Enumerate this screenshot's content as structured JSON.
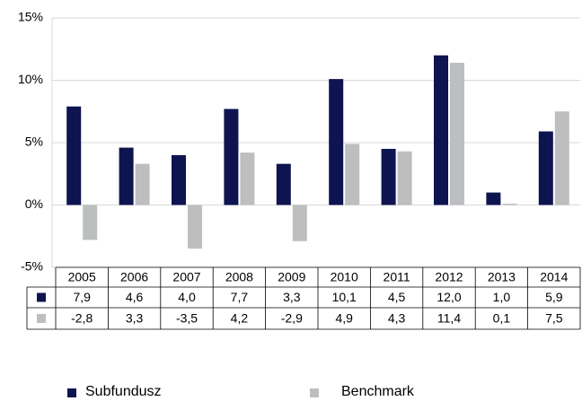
{
  "chart_data": {
    "type": "bar",
    "categories": [
      "2005",
      "2006",
      "2007",
      "2008",
      "2009",
      "2010",
      "2011",
      "2012",
      "2013",
      "2014"
    ],
    "series": [
      {
        "name": "Subfundusz",
        "color": "#0d1450",
        "values": [
          7.9,
          4.6,
          4.0,
          7.7,
          3.3,
          10.1,
          4.5,
          12.0,
          1.0,
          5.9
        ],
        "value_labels": [
          "7,9",
          "4,6",
          "4,0",
          "7,7",
          "3,3",
          "10,1",
          "4,5",
          "12,0",
          "1,0",
          "5,9"
        ]
      },
      {
        "name": "Benchmark",
        "color": "#bdbebf",
        "values": [
          -2.8,
          3.3,
          -3.5,
          4.2,
          -2.9,
          4.9,
          4.3,
          11.4,
          0.1,
          7.5
        ],
        "value_labels": [
          "-2,8",
          "3,3",
          "-3,5",
          "4,2",
          "-2,9",
          "4,9",
          "4,3",
          "11,4",
          "0,1",
          "7,5"
        ]
      }
    ],
    "ylim": [
      -5,
      15
    ],
    "yticks": [
      {
        "value": -5,
        "label": "-5%"
      },
      {
        "value": 0,
        "label": "0%"
      },
      {
        "value": 5,
        "label": "5%"
      },
      {
        "value": 10,
        "label": "10%"
      },
      {
        "value": 15,
        "label": "15%"
      }
    ],
    "grid": true
  }
}
